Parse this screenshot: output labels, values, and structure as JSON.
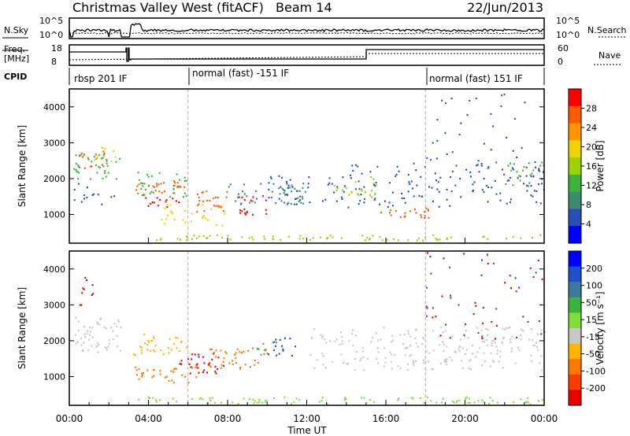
{
  "header": {
    "title": "Christmas Valley West (fitACF)",
    "beam": "Beam 14",
    "date": "22/Jun/2013"
  },
  "panels": {
    "nsky_label": "N.Sky",
    "nsearch_label": "N.Search",
    "freq_label": "Freq.",
    "freq_unit": "[MHz]",
    "nave_label": "Nave",
    "cpid_label": "CPID",
    "nsky_ticks": [
      "10^5",
      "10^0"
    ],
    "nsearch_ticks": [
      "10^5",
      "10^0"
    ],
    "freq_ticks": [
      "18",
      "8"
    ],
    "nave_ticks": [
      "60",
      "0"
    ]
  },
  "cpid_segments": [
    {
      "label": "rbsp 201 IF",
      "start_hour": 0
    },
    {
      "label": "normal (fast) -151 IF",
      "start_hour": 6
    },
    {
      "label": "normal (fast) 151 IF",
      "start_hour": 18
    }
  ],
  "chart_data": [
    {
      "type": "heatmap",
      "panel": "power",
      "ylabel": "Slant Range [km]",
      "xlabel": "",
      "ylim": [
        200,
        4500
      ],
      "xlim_hours": [
        0,
        24
      ],
      "yticks": [
        "1000",
        "2000",
        "3000",
        "4000"
      ],
      "colorbar_label": "Power [dB]",
      "colorbar_ticks": [
        "28",
        "24",
        "20",
        "16",
        "12",
        "8",
        "4"
      ],
      "colorbar_colors": [
        "#ff0000",
        "#ff5a00",
        "#ff9600",
        "#f0d200",
        "#9bd200",
        "#3cb43c",
        "#3c8c6e",
        "#2850b4",
        "#0000ff"
      ]
    },
    {
      "type": "heatmap",
      "panel": "velocity",
      "ylabel": "Slant Range [km]",
      "xlabel": "Time UT",
      "ylim": [
        200,
        4500
      ],
      "xlim_hours": [
        0,
        24
      ],
      "yticks": [
        "1000",
        "2000",
        "3000",
        "4000"
      ],
      "xticks": [
        "00:00",
        "04:00",
        "08:00",
        "12:00",
        "16:00",
        "20:00",
        "00:00"
      ],
      "colorbar_label": "Velocity [m s⁻¹]",
      "colorbar_ticks": [
        "200",
        "100",
        "50",
        "15",
        "-15",
        "-50",
        "-100",
        "-200"
      ],
      "colorbar_colors": [
        "#0000ff",
        "#1e50c8",
        "#3c78a0",
        "#3cb43c",
        "#82dc3c",
        "#c8c8c8",
        "#ffb400",
        "#ff7800",
        "#ff3c00",
        "#e60000"
      ]
    }
  ]
}
